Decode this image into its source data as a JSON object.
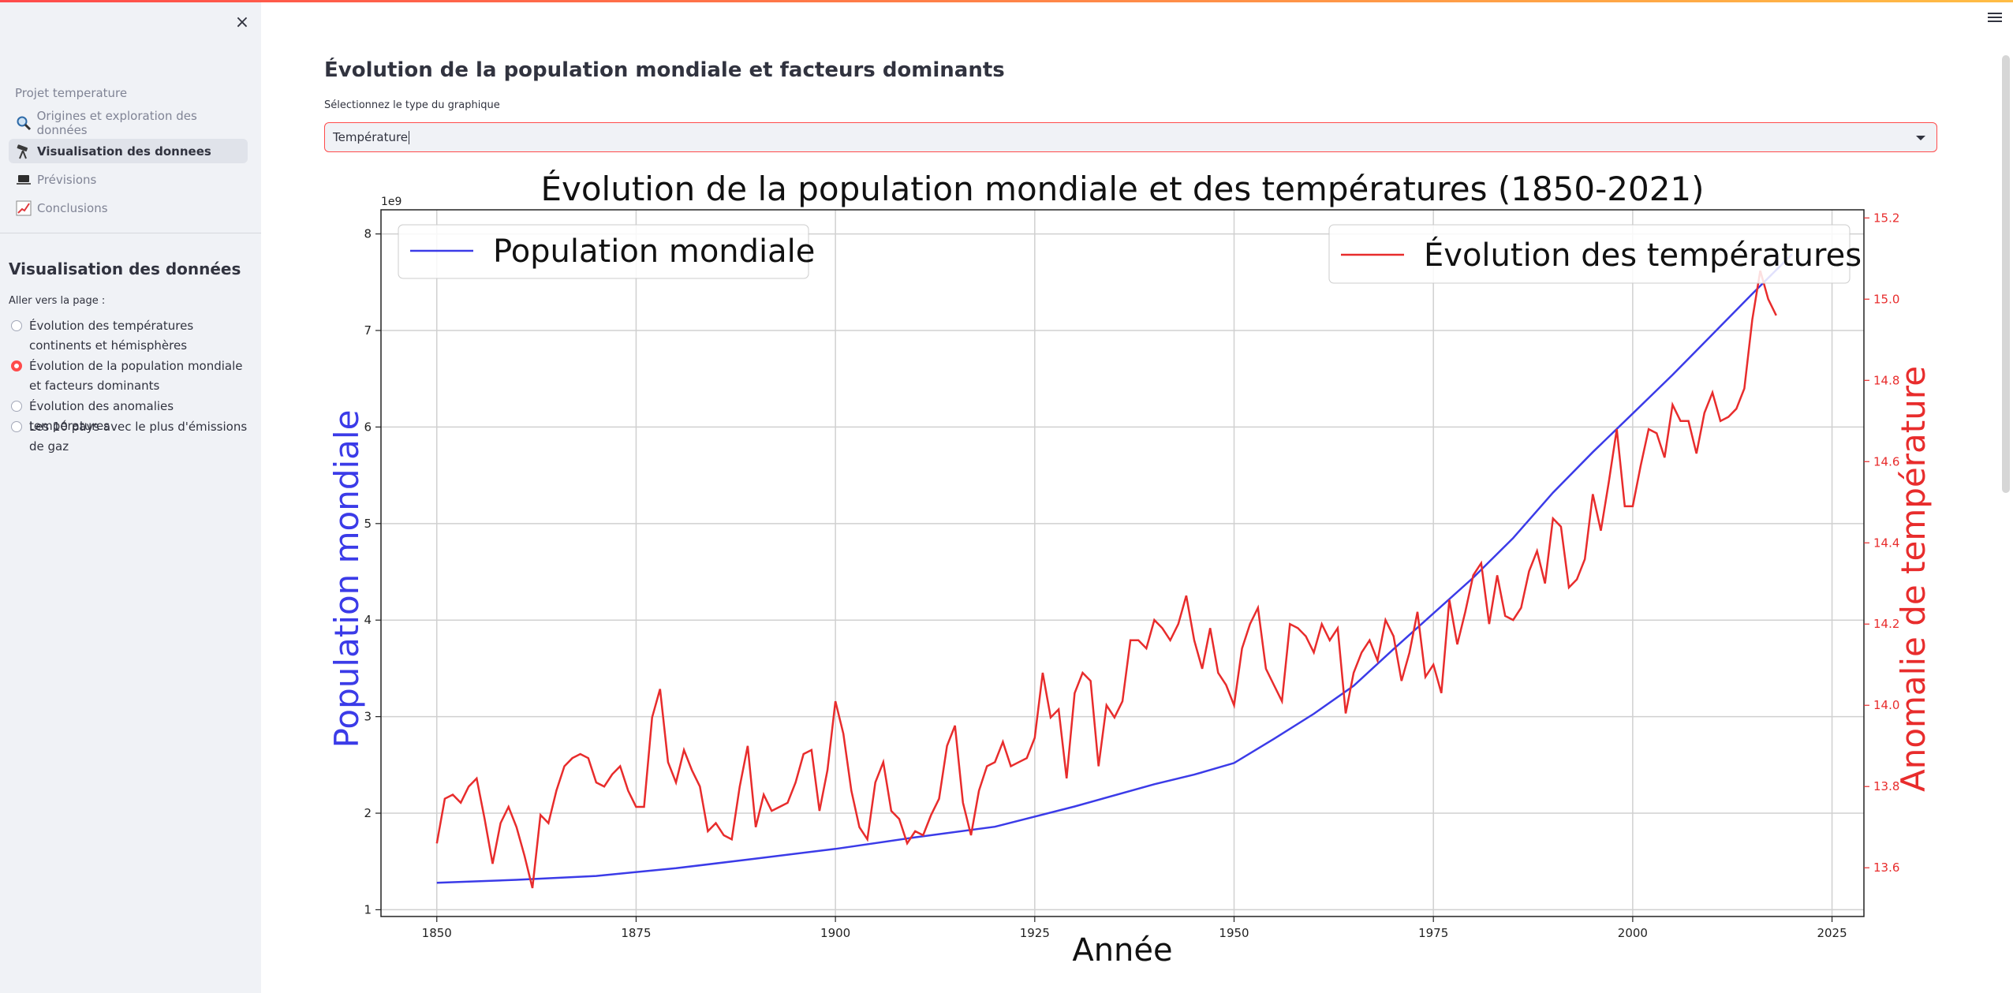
{
  "sidebar": {
    "close_icon": "×",
    "nav_heading": "Projet temperature",
    "nav_items": [
      {
        "label": "Origines et exploration des données",
        "icon": "magnifier-icon"
      },
      {
        "label": "Visualisation des donnees",
        "icon": "telescope-icon",
        "active": true
      },
      {
        "label": "Prévisions",
        "icon": "laptop-icon"
      },
      {
        "label": "Conclusions",
        "icon": "chart-increasing-icon"
      }
    ],
    "section_title": "Visualisation des données",
    "radio_label": "Aller vers la page :",
    "radio_options": [
      "Évolution des températures continents et hémisphères",
      "Évolution de la population mondiale et facteurs dominants",
      "Évolution des anomalies températures",
      "Les 10 pays avec le plus d'émissions de gaz"
    ],
    "radio_selected": 1
  },
  "main": {
    "title": "Évolution de la population mondiale et facteurs dominants",
    "select_label": "Sélectionnez le type du graphique",
    "select_value": "Température"
  },
  "colors": {
    "accent": "#ff4b4b",
    "population": "#3b3be8",
    "temperature": "#e82c2c"
  },
  "chart_data": {
    "type": "line",
    "title": "Évolution de la population mondiale et des températures (1850-2021)",
    "xlabel": "Année",
    "ylabel_left": "Population mondiale",
    "ylabel_right": "Anomalie de température",
    "left_scale_note": "1e9",
    "xlim": [
      1843,
      2029
    ],
    "ylim_left": [
      0.93,
      8.25
    ],
    "ylim_right": [
      13.48,
      15.22
    ],
    "x_ticks": [
      1850,
      1875,
      1900,
      1925,
      1950,
      1975,
      2000,
      2025
    ],
    "y_ticks_left": [
      1,
      2,
      3,
      4,
      5,
      6,
      7,
      8
    ],
    "y_ticks_right": [
      13.6,
      13.8,
      14.0,
      14.2,
      14.4,
      14.6,
      14.8,
      15.0,
      15.2
    ],
    "grid": true,
    "legend_left": {
      "label": "Population mondiale",
      "placement": "top-left"
    },
    "legend_right": {
      "label": "Évolution des températures",
      "placement": "top-right"
    },
    "series": [
      {
        "name": "Population mondiale",
        "axis": "left",
        "x": [
          1850,
          1860,
          1870,
          1880,
          1890,
          1900,
          1910,
          1920,
          1930,
          1940,
          1945,
          1950,
          1955,
          1960,
          1965,
          1970,
          1975,
          1980,
          1985,
          1990,
          1995,
          2000,
          2005,
          2010,
          2015,
          2020
        ],
        "y": [
          1.28,
          1.31,
          1.35,
          1.43,
          1.53,
          1.63,
          1.75,
          1.86,
          2.07,
          2.3,
          2.4,
          2.52,
          2.77,
          3.03,
          3.32,
          3.7,
          4.07,
          4.44,
          4.85,
          5.32,
          5.74,
          6.14,
          6.54,
          6.96,
          7.38,
          7.79
        ]
      },
      {
        "name": "Évolution des températures",
        "axis": "right",
        "x": [
          1850,
          1851,
          1852,
          1853,
          1854,
          1855,
          1856,
          1857,
          1858,
          1859,
          1860,
          1861,
          1862,
          1863,
          1864,
          1865,
          1866,
          1867,
          1868,
          1869,
          1870,
          1871,
          1872,
          1873,
          1874,
          1875,
          1876,
          1877,
          1878,
          1879,
          1880,
          1881,
          1882,
          1883,
          1884,
          1885,
          1886,
          1887,
          1888,
          1889,
          1890,
          1891,
          1892,
          1893,
          1894,
          1895,
          1896,
          1897,
          1898,
          1899,
          1900,
          1901,
          1902,
          1903,
          1904,
          1905,
          1906,
          1907,
          1908,
          1909,
          1910,
          1911,
          1912,
          1913,
          1914,
          1915,
          1916,
          1917,
          1918,
          1919,
          1920,
          1921,
          1922,
          1923,
          1924,
          1925,
          1926,
          1927,
          1928,
          1929,
          1930,
          1931,
          1932,
          1933,
          1934,
          1935,
          1936,
          1937,
          1938,
          1939,
          1940,
          1941,
          1942,
          1943,
          1944,
          1945,
          1946,
          1947,
          1948,
          1949,
          1950,
          1951,
          1952,
          1953,
          1954,
          1955,
          1956,
          1957,
          1958,
          1959,
          1960,
          1961,
          1962,
          1963,
          1964,
          1965,
          1966,
          1967,
          1968,
          1969,
          1970,
          1971,
          1972,
          1973,
          1974,
          1975,
          1976,
          1977,
          1978,
          1979,
          1980,
          1981,
          1982,
          1983,
          1984,
          1985,
          1986,
          1987,
          1988,
          1989,
          1990,
          1991,
          1992,
          1993,
          1994,
          1995,
          1996,
          1997,
          1998,
          1999,
          2000,
          2001,
          2002,
          2003,
          2004,
          2005,
          2006,
          2007,
          2008,
          2009,
          2010,
          2011,
          2012,
          2013,
          2014,
          2015,
          2016,
          2017,
          2018
        ],
        "y": [
          13.66,
          13.77,
          13.78,
          13.76,
          13.8,
          13.82,
          13.72,
          13.61,
          13.71,
          13.75,
          13.7,
          13.63,
          13.55,
          13.73,
          13.71,
          13.79,
          13.85,
          13.87,
          13.88,
          13.87,
          13.81,
          13.8,
          13.83,
          13.85,
          13.79,
          13.75,
          13.75,
          13.97,
          14.04,
          13.86,
          13.81,
          13.89,
          13.84,
          13.8,
          13.69,
          13.71,
          13.68,
          13.67,
          13.8,
          13.9,
          13.7,
          13.78,
          13.74,
          13.75,
          13.76,
          13.81,
          13.88,
          13.89,
          13.74,
          13.84,
          14.01,
          13.93,
          13.79,
          13.7,
          13.67,
          13.81,
          13.86,
          13.74,
          13.72,
          13.66,
          13.69,
          13.68,
          13.73,
          13.77,
          13.9,
          13.95,
          13.76,
          13.68,
          13.79,
          13.85,
          13.86,
          13.91,
          13.85,
          13.86,
          13.87,
          13.92,
          14.08,
          13.97,
          13.99,
          13.82,
          14.03,
          14.08,
          14.06,
          13.85,
          14,
          13.97,
          14.01,
          14.16,
          14.16,
          14.14,
          14.21,
          14.19,
          14.16,
          14.2,
          14.27,
          14.16,
          14.09,
          14.19,
          14.08,
          14.05,
          14,
          14.14,
          14.2,
          14.24,
          14.09,
          14.05,
          14.01,
          14.2,
          14.19,
          14.17,
          14.13,
          14.2,
          14.16,
          14.19,
          13.98,
          14.08,
          14.13,
          14.16,
          14.11,
          14.21,
          14.17,
          14.06,
          14.13,
          14.23,
          14.07,
          14.1,
          14.03,
          14.26,
          14.15,
          14.23,
          14.32,
          14.35,
          14.2,
          14.32,
          14.22,
          14.21,
          14.24,
          14.33,
          14.38,
          14.3,
          14.46,
          14.44,
          14.29,
          14.31,
          14.36,
          14.52,
          14.43,
          14.55,
          14.68,
          14.49,
          14.49,
          14.59,
          14.68,
          14.67,
          14.61,
          14.74,
          14.7,
          14.7,
          14.62,
          14.72,
          14.77,
          14.7,
          14.71,
          14.73,
          14.78,
          14.95,
          15.07,
          15.0,
          14.96
        ]
      }
    ]
  }
}
